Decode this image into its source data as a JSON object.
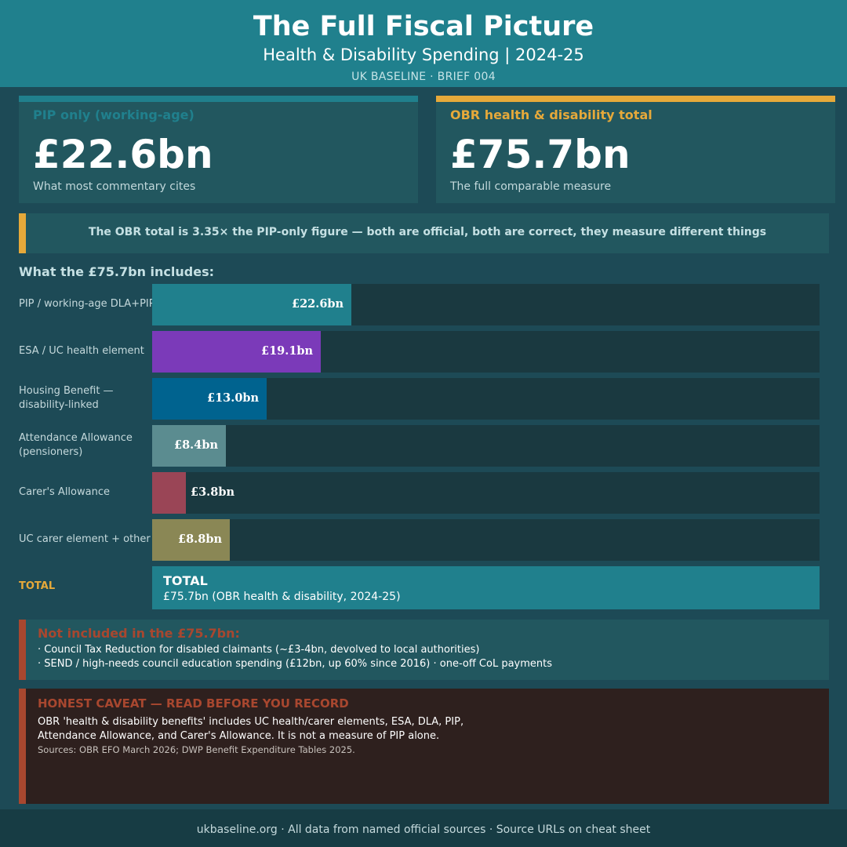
{
  "header": {
    "title": "The Full Fiscal Picture",
    "subtitle": "Health & Disability Spending  |  2024-25",
    "tag": "UK BASELINE  ·  BRIEF 004"
  },
  "cards": {
    "pip": {
      "label": "PIP only (working-age)",
      "value": "£22.6bn",
      "note": "What most commentary cites",
      "color": "#20808d"
    },
    "obr": {
      "label": "OBR health & disability total",
      "value": "£75.7bn",
      "note": "The full comparable measure",
      "color": "#e6a93a"
    }
  },
  "ratio_text": "The OBR total is 3.35× the PIP-only figure  —  both are official, both are correct, they measure different things",
  "chart_data": {
    "type": "bar",
    "orientation": "horizontal",
    "title": "What the £75.7bn includes:",
    "xlim": [
      0,
      75.7
    ],
    "unit": "£bn",
    "categories": [
      "PIP / working-age DLA+PIP",
      "ESA / UC health element",
      "Housing Benefit — disability-linked",
      "Attendance Allowance (pensioners)",
      "Carer's Allowance",
      "UC carer element + other"
    ],
    "values": [
      22.6,
      19.1,
      13.0,
      8.4,
      3.8,
      8.8
    ],
    "value_labels": [
      "£22.6bn",
      "£19.1bn",
      "£13.0bn",
      "£8.4bn",
      "£3.8bn",
      "£8.8bn"
    ],
    "colors": [
      "#20808d",
      "#7b3ab9",
      "#00638f",
      "#5b8c90",
      "#9a4556",
      "#8a8755"
    ],
    "total": {
      "row_label": "TOTAL",
      "title": "TOTAL",
      "value": 75.7,
      "detail": "£75.7bn  (OBR health & disability, 2024-25)"
    }
  },
  "excluded": {
    "title": "Not included in the £75.7bn:",
    "lines": [
      "·  Council Tax Reduction for disabled claimants (~£3-4bn, devolved to local authorities)",
      "·  SEND / high-needs council education spending (£12bn, up 60% since 2016)  ·  one-off CoL payments"
    ]
  },
  "caveat": {
    "title": "HONEST CAVEAT — READ BEFORE YOU RECORD",
    "body": "OBR 'health & disability benefits' includes UC health/carer elements, ESA, DLA, PIP, Attendance Allowance, and Carer's Allowance. It is not a measure of PIP alone.",
    "sources": "Sources: OBR EFO March 2026; DWP Benefit Expenditure Tables 2025."
  },
  "footer": "ukbaseline.org  ·  All data from named official sources  ·  Source URLs on cheat sheet"
}
